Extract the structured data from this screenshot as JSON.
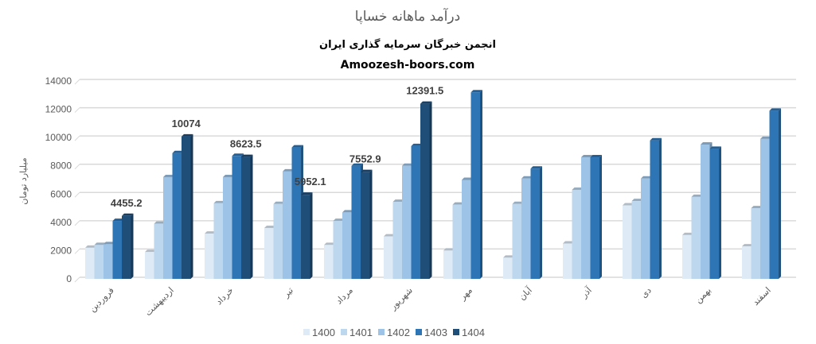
{
  "chart_data": {
    "type": "bar",
    "title": "درآمد ماهانه خساپا",
    "subtitle": "انجمن خبرگان سرمایه گذاری ایران",
    "source": "Amoozesh-boors.com",
    "ylabel": "میلیارد تومان",
    "xlabel": "",
    "ylim": [
      0,
      14000
    ],
    "yticks": [
      0,
      2000,
      4000,
      6000,
      8000,
      10000,
      12000,
      14000
    ],
    "grid": true,
    "legend_position": "bottom",
    "style": "3d-clustered-column",
    "categories": [
      "فروردین",
      "اردیبهشت",
      "خرداد",
      "تیر",
      "مرداد",
      "شهریور",
      "مهر",
      "آبان",
      "آذر",
      "دی",
      "بهمن",
      "اسفند"
    ],
    "series": [
      {
        "name": "1400",
        "color": "#deebf7",
        "values": [
          2200,
          1900,
          3200,
          3600,
          2400,
          3000,
          2000,
          1500,
          2500,
          5200,
          3100,
          2300
        ]
      },
      {
        "name": "1401",
        "color": "#bdd7ee",
        "values": [
          2400,
          3900,
          5350,
          5300,
          4100,
          5450,
          5250,
          5300,
          6300,
          5500,
          5800,
          5000
        ]
      },
      {
        "name": "1402",
        "color": "#9dc3e6",
        "values": [
          2450,
          7200,
          7200,
          7600,
          4700,
          8000,
          7000,
          7100,
          8600,
          7100,
          9500,
          9900
        ]
      },
      {
        "name": "1403",
        "color": "#2e75b6",
        "values": [
          4100,
          8900,
          8700,
          9300,
          8000,
          9400,
          13200,
          7800,
          8600,
          9800,
          9200,
          11900
        ]
      },
      {
        "name": "1404",
        "color": "#1f4e79",
        "values": [
          4455.2,
          10074,
          8623.5,
          5952.1,
          7552.9,
          12391.5,
          null,
          null,
          null,
          null,
          null,
          null
        ]
      }
    ],
    "data_labels": {
      "series": "1404",
      "values": [
        "4455.2",
        "10074",
        "8623.5",
        "5952.1",
        "7552.9",
        "12391.5"
      ]
    }
  }
}
